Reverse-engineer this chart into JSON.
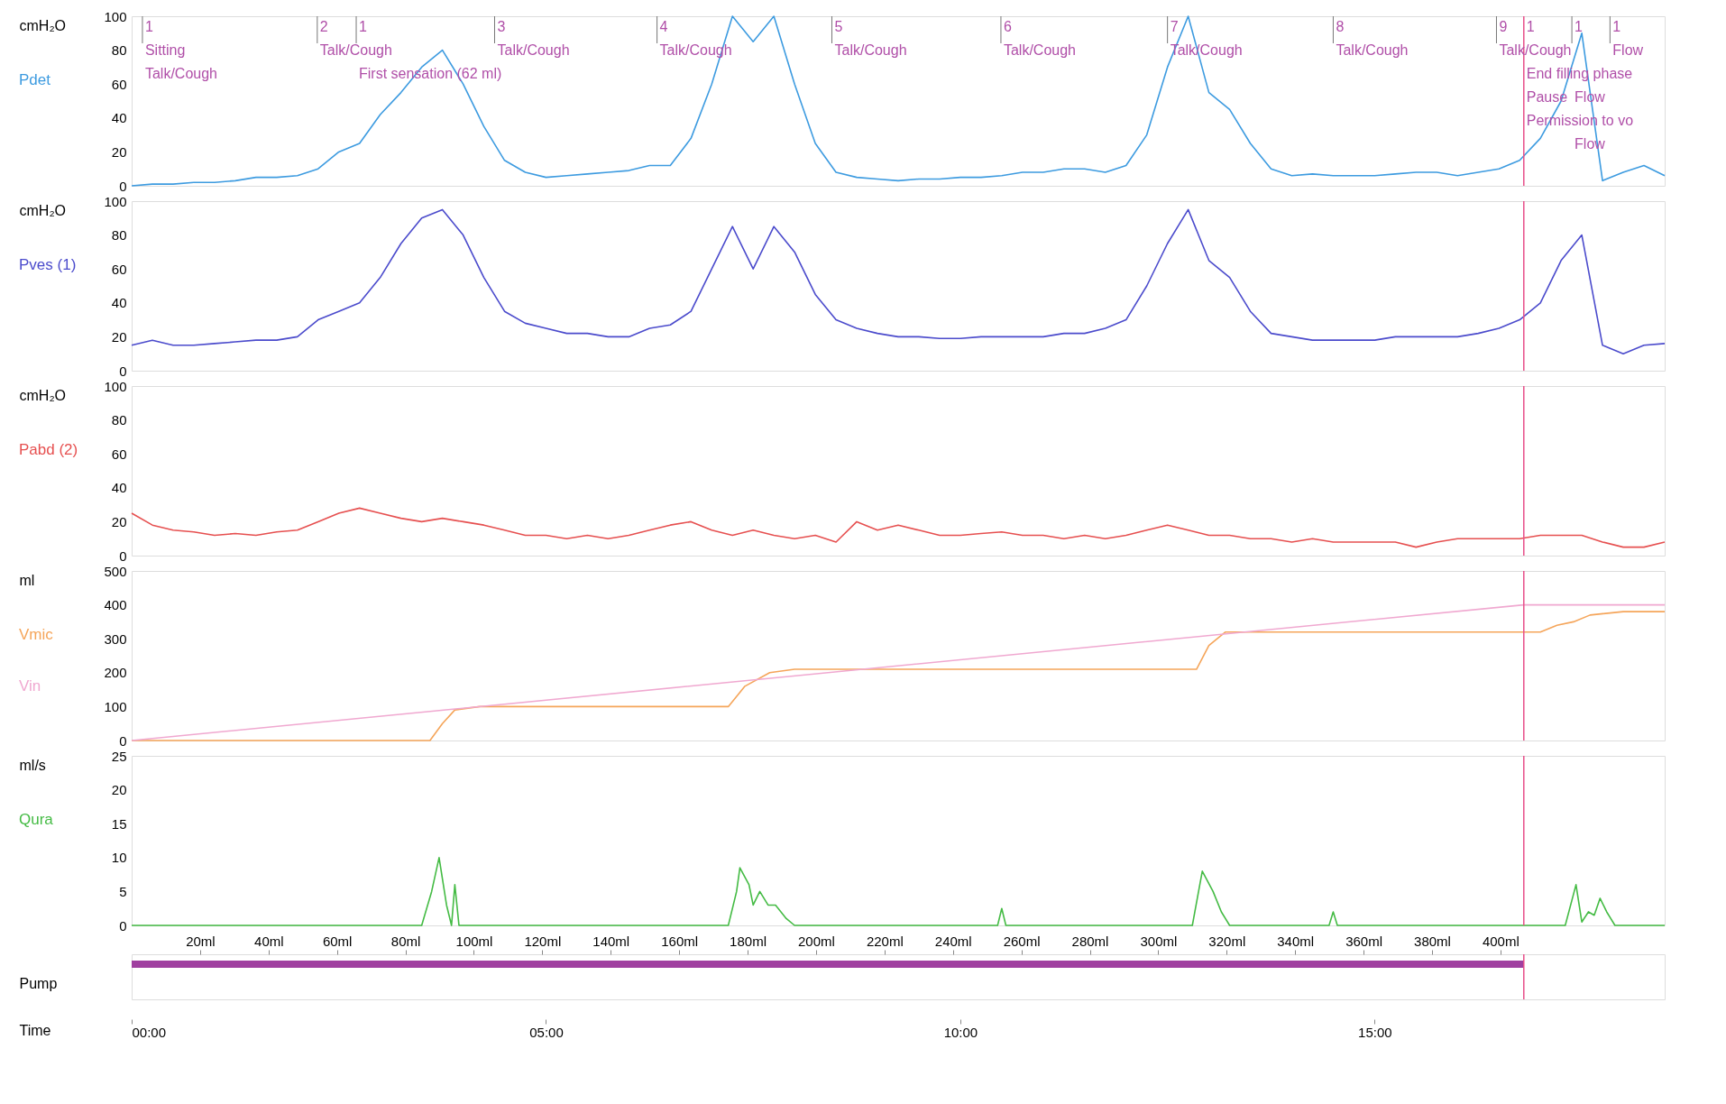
{
  "chart_data": [
    {
      "type": "line",
      "ylabel": "cmH₂O",
      "xlim": [
        0,
        18.5
      ],
      "ylim": [
        0,
        100
      ],
      "yticks": [
        0,
        20,
        40,
        60,
        80,
        100
      ],
      "tick_labels": "y",
      "x": [
        0,
        0.25,
        0.5,
        0.75,
        1,
        1.25,
        1.5,
        1.75,
        2,
        2.25,
        2.5,
        2.75,
        3,
        3.25,
        3.5,
        3.75,
        4,
        4.25,
        4.5,
        4.75,
        5,
        5.25,
        5.5,
        5.75,
        6,
        6.25,
        6.5,
        6.75,
        7,
        7.25,
        7.5,
        7.75,
        8,
        8.25,
        8.5,
        8.75,
        9,
        9.25,
        9.5,
        9.75,
        10,
        10.25,
        10.5,
        10.75,
        11,
        11.25,
        11.5,
        11.75,
        12,
        12.25,
        12.5,
        12.75,
        13,
        13.25,
        13.5,
        13.75,
        14,
        14.25,
        14.5,
        14.75,
        15,
        15.25,
        15.5,
        15.75,
        16,
        16.25,
        16.5,
        16.75,
        17,
        17.25,
        17.5,
        17.75,
        18,
        18.25,
        18.5
      ],
      "series": [
        {
          "name": "Pdet",
          "color": "#3d9be0",
          "values": [
            0,
            1,
            1,
            2,
            2,
            3,
            5,
            5,
            6,
            10,
            20,
            25,
            42,
            55,
            70,
            80,
            60,
            35,
            15,
            8,
            5,
            6,
            7,
            8,
            9,
            12,
            12,
            28,
            60,
            100,
            85,
            100,
            60,
            25,
            8,
            5,
            4,
            3,
            4,
            4,
            5,
            5,
            6,
            8,
            8,
            10,
            10,
            8,
            12,
            30,
            70,
            100,
            55,
            45,
            25,
            10,
            6,
            7,
            6,
            6,
            6,
            7,
            8,
            8,
            6,
            8,
            10,
            15,
            28,
            50,
            90,
            3,
            8,
            12,
            6
          ]
        }
      ],
      "annotations": [
        {
          "text": "1",
          "x": 0.13
        },
        "Sitting",
        "Talk/Cough",
        {
          "text": "2",
          "x": 2.24
        },
        "Talk/Cough",
        {
          "text": "1",
          "x": 2.71
        },
        "First sensation (62 ml)",
        {
          "text": "3",
          "x": 4.38
        },
        "Talk/Cough",
        {
          "text": "4",
          "x": 6.34
        },
        "Talk/Cough",
        {
          "text": "5",
          "x": 8.45
        },
        "Talk/Cough",
        {
          "text": "6",
          "x": 10.49
        },
        "Talk/Cough",
        {
          "text": "7",
          "x": 12.5
        },
        "Talk/Cough",
        {
          "text": "8",
          "x": 14.5
        },
        "Talk/Cough",
        {
          "text": "9",
          "x": 16.47
        },
        "Talk/Cough",
        {
          "text": "1",
          "x": 16.8
        },
        "End filling phase",
        "Pause",
        "Permission to vo",
        {
          "text": "1",
          "x": 17.38
        },
        "Flow",
        "Flow",
        {
          "text": "1",
          "x": 17.84
        },
        "Flow"
      ],
      "ref_lines": [
        {
          "axis": "x",
          "value": 0.13
        },
        {
          "axis": "x",
          "value": 2.24
        },
        {
          "axis": "x",
          "value": 2.71
        },
        {
          "axis": "x",
          "value": 4.38
        },
        {
          "axis": "x",
          "value": 6.34
        },
        {
          "axis": "x",
          "value": 8.45
        },
        {
          "axis": "x",
          "value": 10.49
        },
        {
          "axis": "x",
          "value": 12.5
        },
        {
          "axis": "x",
          "value": 14.5
        },
        {
          "axis": "x",
          "value": 16.47
        },
        {
          "axis": "x",
          "value": 16.8,
          "color": "#e8508a"
        },
        {
          "axis": "x",
          "value": 17.38
        },
        {
          "axis": "x",
          "value": 17.84
        }
      ]
    },
    {
      "type": "line",
      "ylabel": "cmH₂O",
      "xlim": [
        0,
        18.5
      ],
      "ylim": [
        0,
        100
      ],
      "yticks": [
        0,
        20,
        40,
        60,
        80,
        100
      ],
      "tick_labels": "y",
      "x": [
        0,
        0.25,
        0.5,
        0.75,
        1,
        1.25,
        1.5,
        1.75,
        2,
        2.25,
        2.5,
        2.75,
        3,
        3.25,
        3.5,
        3.75,
        4,
        4.25,
        4.5,
        4.75,
        5,
        5.25,
        5.5,
        5.75,
        6,
        6.25,
        6.5,
        6.75,
        7,
        7.25,
        7.5,
        7.75,
        8,
        8.25,
        8.5,
        8.75,
        9,
        9.25,
        9.5,
        9.75,
        10,
        10.25,
        10.5,
        10.75,
        11,
        11.25,
        11.5,
        11.75,
        12,
        12.25,
        12.5,
        12.75,
        13,
        13.25,
        13.5,
        13.75,
        14,
        14.25,
        14.5,
        14.75,
        15,
        15.25,
        15.5,
        15.75,
        16,
        16.25,
        16.5,
        16.75,
        17,
        17.25,
        17.5,
        17.75,
        18,
        18.25,
        18.5
      ],
      "series": [
        {
          "name": "Pves (1)",
          "color": "#4b4bcc",
          "values": [
            15,
            18,
            15,
            15,
            16,
            17,
            18,
            18,
            20,
            30,
            35,
            40,
            55,
            75,
            90,
            95,
            80,
            55,
            35,
            28,
            25,
            22,
            22,
            20,
            20,
            25,
            27,
            35,
            60,
            85,
            60,
            85,
            70,
            45,
            30,
            25,
            22,
            20,
            20,
            19,
            19,
            20,
            20,
            20,
            20,
            22,
            22,
            25,
            30,
            50,
            75,
            95,
            65,
            55,
            35,
            22,
            20,
            18,
            18,
            18,
            18,
            20,
            20,
            20,
            20,
            22,
            25,
            30,
            40,
            65,
            80,
            15,
            10,
            15,
            16
          ]
        }
      ],
      "ref_lines": [
        {
          "axis": "x",
          "value": 16.8,
          "color": "#e8508a"
        }
      ]
    },
    {
      "type": "line",
      "ylabel": "cmH₂O",
      "xlim": [
        0,
        18.5
      ],
      "ylim": [
        0,
        100
      ],
      "yticks": [
        0,
        20,
        40,
        60,
        80,
        100
      ],
      "tick_labels": "y",
      "x": [
        0,
        0.25,
        0.5,
        0.75,
        1,
        1.25,
        1.5,
        1.75,
        2,
        2.25,
        2.5,
        2.75,
        3,
        3.25,
        3.5,
        3.75,
        4,
        4.25,
        4.5,
        4.75,
        5,
        5.25,
        5.5,
        5.75,
        6,
        6.25,
        6.5,
        6.75,
        7,
        7.25,
        7.5,
        7.75,
        8,
        8.25,
        8.5,
        8.75,
        9,
        9.25,
        9.5,
        9.75,
        10,
        10.25,
        10.5,
        10.75,
        11,
        11.25,
        11.5,
        11.75,
        12,
        12.25,
        12.5,
        12.75,
        13,
        13.25,
        13.5,
        13.75,
        14,
        14.25,
        14.5,
        14.75,
        15,
        15.25,
        15.5,
        15.75,
        16,
        16.25,
        16.5,
        16.75,
        17,
        17.25,
        17.5,
        17.75,
        18,
        18.25,
        18.5
      ],
      "series": [
        {
          "name": "Pabd (2)",
          "color": "#e65050",
          "values": [
            25,
            18,
            15,
            14,
            12,
            13,
            12,
            14,
            15,
            20,
            25,
            28,
            25,
            22,
            20,
            22,
            20,
            18,
            15,
            12,
            12,
            10,
            12,
            10,
            12,
            15,
            18,
            20,
            15,
            12,
            15,
            12,
            10,
            12,
            8,
            20,
            15,
            18,
            15,
            12,
            12,
            13,
            14,
            12,
            12,
            10,
            12,
            10,
            12,
            15,
            18,
            15,
            12,
            12,
            10,
            10,
            8,
            10,
            8,
            8,
            8,
            8,
            5,
            8,
            10,
            10,
            10,
            10,
            12,
            12,
            12,
            8,
            5,
            5,
            8
          ]
        }
      ],
      "ref_lines": [
        {
          "axis": "x",
          "value": 16.8,
          "color": "#e8508a"
        }
      ]
    },
    {
      "type": "line",
      "ylabel": "ml",
      "xlim": [
        0,
        18.5
      ],
      "ylim": [
        0,
        500
      ],
      "yticks": [
        0,
        100,
        200,
        300,
        400,
        500
      ],
      "tick_labels": "y",
      "series": [
        {
          "name": "Vmic",
          "color": "#f5a55a",
          "x": [
            0,
            3.6,
            3.75,
            3.9,
            4.2,
            7.2,
            7.4,
            7.7,
            8.0,
            12.85,
            13.0,
            13.2,
            16.8,
            17.0,
            17.2,
            17.4,
            17.6,
            18.0,
            18.5
          ],
          "values": [
            0,
            0,
            50,
            90,
            100,
            100,
            160,
            200,
            210,
            210,
            280,
            320,
            320,
            320,
            340,
            350,
            370,
            380,
            380
          ]
        },
        {
          "name": "Vin",
          "color": "#f0a8d0",
          "x": [
            0,
            16.8,
            18.5
          ],
          "values": [
            0,
            400,
            400
          ]
        }
      ],
      "ref_lines": [
        {
          "axis": "x",
          "value": 16.8,
          "color": "#e8508a"
        }
      ]
    },
    {
      "type": "line",
      "ylabel": "ml/s",
      "xlim": [
        0,
        18.5
      ],
      "ylim": [
        0,
        25
      ],
      "yticks": [
        0,
        5,
        10,
        15,
        20,
        25
      ],
      "tick_labels": "y",
      "series": [
        {
          "name": "Qura",
          "color": "#44bb44",
          "x": [
            0,
            3.5,
            3.62,
            3.71,
            3.8,
            3.86,
            3.9,
            3.95,
            4.2,
            7.2,
            7.3,
            7.34,
            7.45,
            7.5,
            7.58,
            7.68,
            7.77,
            7.9,
            8.0,
            10.45,
            10.5,
            10.55,
            12.8,
            12.86,
            12.92,
            13.05,
            13.15,
            13.25,
            14.45,
            14.5,
            14.55,
            17.3,
            17.43,
            17.5,
            17.58,
            17.65,
            17.72,
            17.8,
            17.9,
            18.5
          ],
          "values": [
            0,
            0,
            5,
            10,
            3,
            0,
            6,
            0,
            0,
            0,
            5,
            8.5,
            6,
            3,
            5,
            3,
            3,
            1,
            0,
            0,
            2.5,
            0,
            0,
            4,
            8,
            5,
            2,
            0,
            0,
            2,
            0,
            0,
            6,
            0.5,
            2,
            1.5,
            4,
            2,
            0,
            0
          ]
        }
      ],
      "ref_lines": [
        {
          "axis": "x",
          "value": 16.8,
          "color": "#e8508a"
        }
      ]
    },
    {
      "type": "bar",
      "orientation": "horizontal",
      "categories": [
        "Pump"
      ],
      "base": [
        0
      ],
      "values": [
        16.8
      ],
      "colors": [
        "#a040a0"
      ],
      "xlim": [
        0,
        18.5
      ],
      "xticks": [
        {
          "value": 0,
          "label": "00:00"
        },
        {
          "value": 5,
          "label": "05:00"
        },
        {
          "value": 10,
          "label": "10:00"
        },
        {
          "value": 15,
          "label": "15:00"
        }
      ],
      "xlabel": "Time",
      "x2lim": [
        0,
        448
      ],
      "x2ticks": [
        {
          "value": 20,
          "label": "20ml"
        },
        {
          "value": 40,
          "label": "40ml"
        },
        {
          "value": 60,
          "label": "60ml"
        },
        {
          "value": 80,
          "label": "80ml"
        },
        {
          "value": 100,
          "label": "100ml"
        },
        {
          "value": 120,
          "label": "120ml"
        },
        {
          "value": 140,
          "label": "140ml"
        },
        {
          "value": 160,
          "label": "160ml"
        },
        {
          "value": 180,
          "label": "180ml"
        },
        {
          "value": 200,
          "label": "200ml"
        },
        {
          "value": 220,
          "label": "220ml"
        },
        {
          "value": 240,
          "label": "240ml"
        },
        {
          "value": 260,
          "label": "260ml"
        },
        {
          "value": 280,
          "label": "280ml"
        },
        {
          "value": 300,
          "label": "300ml"
        },
        {
          "value": 320,
          "label": "320ml"
        },
        {
          "value": 340,
          "label": "340ml"
        },
        {
          "value": 360,
          "label": "360ml"
        },
        {
          "value": 380,
          "label": "380ml"
        },
        {
          "value": 400,
          "label": "400ml"
        }
      ],
      "ref_lines": [
        {
          "axis": "x",
          "value": 16.8,
          "color": "#e8508a"
        }
      ]
    }
  ]
}
